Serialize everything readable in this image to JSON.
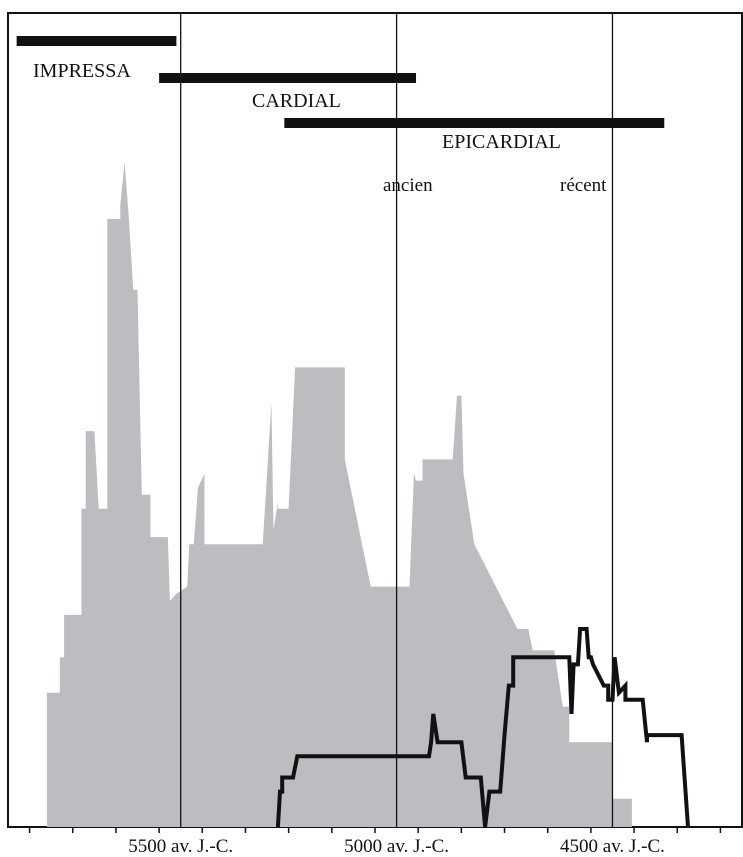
{
  "chart_data": {
    "type": "area",
    "title": "",
    "xlabel": "",
    "ylabel": "",
    "x_unit_label": "av. J.-C.",
    "xlim": [
      5900,
      4200
    ],
    "ylim": [
      0,
      100
    ],
    "x_axis_reversed": true,
    "grid": false,
    "x_ticks": [
      5850,
      5750,
      5650,
      5550,
      5450,
      5350,
      5250,
      5150,
      5050,
      4950,
      4850,
      4750,
      4650,
      4550,
      4450,
      4350,
      4250
    ],
    "x_tick_labels": [
      {
        "value": 5500,
        "label": "5500 av. J.-C."
      },
      {
        "value": 5000,
        "label": "5000 av. J.-C."
      },
      {
        "value": 4500,
        "label": "4500 av. J.-C."
      }
    ],
    "vertical_lines": [
      5500,
      5000,
      4500
    ],
    "phases": [
      {
        "label": "IMPRESSA",
        "start": 5880,
        "end": 5510
      },
      {
        "label": "CARDIAL",
        "start": 5550,
        "end": 4955
      },
      {
        "label": "EPICARDIAL",
        "start": 5260,
        "end": 4380
      }
    ],
    "sub_labels": [
      {
        "label": "ancien",
        "x": 5000
      },
      {
        "label": "récent",
        "x": 4500
      }
    ],
    "series": [
      {
        "type": "area",
        "color": "#bcbdc0",
        "points": [
          [
            5810,
            0
          ],
          [
            5810,
            19
          ],
          [
            5780,
            19
          ],
          [
            5780,
            24
          ],
          [
            5770,
            24
          ],
          [
            5770,
            30
          ],
          [
            5730,
            30
          ],
          [
            5730,
            45
          ],
          [
            5720,
            45
          ],
          [
            5720,
            56
          ],
          [
            5700,
            56
          ],
          [
            5690,
            45
          ],
          [
            5670,
            45
          ],
          [
            5670,
            86
          ],
          [
            5640,
            86
          ],
          [
            5640,
            88
          ],
          [
            5630,
            94
          ],
          [
            5620,
            86
          ],
          [
            5610,
            76
          ],
          [
            5600,
            76
          ],
          [
            5590,
            47
          ],
          [
            5570,
            47
          ],
          [
            5570,
            41
          ],
          [
            5530,
            41
          ],
          [
            5525,
            32
          ],
          [
            5510,
            33
          ],
          [
            5485,
            34
          ],
          [
            5480,
            40
          ],
          [
            5470,
            40
          ],
          [
            5460,
            48
          ],
          [
            5445,
            50
          ],
          [
            5445,
            40
          ],
          [
            5310,
            40
          ],
          [
            5300,
            50
          ],
          [
            5290,
            60
          ],
          [
            5285,
            42
          ],
          [
            5275,
            46
          ],
          [
            5275,
            45
          ],
          [
            5250,
            45
          ],
          [
            5235,
            65
          ],
          [
            5120,
            65
          ],
          [
            5120,
            52
          ],
          [
            5060,
            34
          ],
          [
            5000,
            34
          ],
          [
            4970,
            34
          ],
          [
            4960,
            50
          ],
          [
            4955,
            49
          ],
          [
            4940,
            49
          ],
          [
            4940,
            52
          ],
          [
            4870,
            52
          ],
          [
            4860,
            61
          ],
          [
            4850,
            61
          ],
          [
            4845,
            50
          ],
          [
            4820,
            40
          ],
          [
            4720,
            28
          ],
          [
            4695,
            28
          ],
          [
            4685,
            25
          ],
          [
            4675,
            25
          ],
          [
            4635,
            25
          ],
          [
            4615,
            17
          ],
          [
            4600,
            17
          ],
          [
            4600,
            12
          ],
          [
            4500,
            12
          ],
          [
            4500,
            4
          ],
          [
            4455,
            4
          ],
          [
            4455,
            0
          ]
        ]
      },
      {
        "type": "line",
        "color": "#111111",
        "points": [
          [
            5275,
            0
          ],
          [
            5270,
            5
          ],
          [
            5265,
            5
          ],
          [
            5265,
            7
          ],
          [
            5240,
            7
          ],
          [
            5230,
            10
          ],
          [
            5000,
            10
          ],
          [
            4960,
            10
          ],
          [
            4925,
            10
          ],
          [
            4920,
            12
          ],
          [
            4915,
            16
          ],
          [
            4905,
            12
          ],
          [
            4885,
            12
          ],
          [
            4860,
            12
          ],
          [
            4850,
            12
          ],
          [
            4840,
            7
          ],
          [
            4805,
            7
          ],
          [
            4795,
            0
          ],
          [
            4785,
            5
          ],
          [
            4760,
            5
          ],
          [
            4750,
            13
          ],
          [
            4740,
            20
          ],
          [
            4730,
            20
          ],
          [
            4730,
            24
          ],
          [
            4655,
            24
          ],
          [
            4600,
            24
          ],
          [
            4595,
            16
          ],
          [
            4590,
            23
          ],
          [
            4580,
            23
          ],
          [
            4575,
            28
          ],
          [
            4560,
            28
          ],
          [
            4555,
            24
          ],
          [
            4550,
            24
          ],
          [
            4545,
            23
          ],
          [
            4520,
            20
          ],
          [
            4510,
            20
          ],
          [
            4510,
            18
          ],
          [
            4500,
            18
          ],
          [
            4495,
            24
          ],
          [
            4485,
            19
          ],
          [
            4470,
            20
          ],
          [
            4470,
            18
          ],
          [
            4430,
            18
          ],
          [
            4420,
            12
          ],
          [
            4420,
            13
          ],
          [
            4340,
            13
          ],
          [
            4325,
            0
          ]
        ]
      }
    ]
  }
}
